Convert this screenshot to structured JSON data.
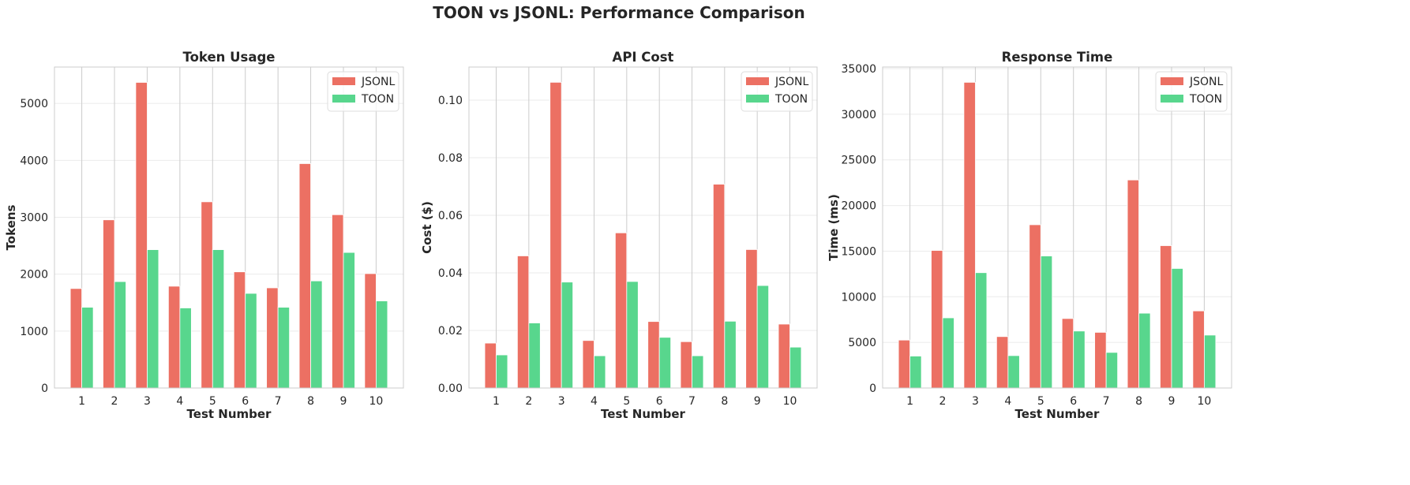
{
  "suptitle": "TOON vs JSONL: Performance Comparison",
  "colors": {
    "JSONL": "#ec7063",
    "TOON": "#58d68d"
  },
  "chart_data": [
    {
      "type": "bar",
      "title": "Token Usage",
      "xlabel": "Test Number",
      "ylabel": "Tokens",
      "categories": [
        "1",
        "2",
        "3",
        "4",
        "5",
        "6",
        "7",
        "8",
        "9",
        "10"
      ],
      "yticks": [
        "0",
        "1000",
        "2000",
        "3000",
        "4000",
        "5000"
      ],
      "ylim": [
        0,
        5640
      ],
      "grid": true,
      "legend": "top-right",
      "series": [
        {
          "name": "JSONL",
          "values": [
            1748,
            2955,
            5370,
            1789,
            3272,
            2041,
            1760,
            3943,
            3045,
            2010
          ]
        },
        {
          "name": "TOON",
          "values": [
            1419,
            1870,
            2431,
            1407,
            2431,
            1663,
            1419,
            1882,
            2382,
            1530
          ]
        }
      ]
    },
    {
      "type": "bar",
      "title": "API Cost",
      "xlabel": "Test Number",
      "ylabel": "Cost ($)",
      "categories": [
        "1",
        "2",
        "3",
        "4",
        "5",
        "6",
        "7",
        "8",
        "9",
        "10"
      ],
      "yticks": [
        "0.00",
        "0.02",
        "0.04",
        "0.06",
        "0.08",
        "0.10"
      ],
      "ylim": [
        0,
        0.1115
      ],
      "grid": true,
      "legend": "top-right",
      "series": [
        {
          "name": "JSONL",
          "values": [
            0.0156,
            0.0459,
            0.1062,
            0.0165,
            0.0539,
            0.0231,
            0.0161,
            0.0708,
            0.0481,
            0.0222
          ]
        },
        {
          "name": "TOON",
          "values": [
            0.0115,
            0.0226,
            0.0368,
            0.0112,
            0.037,
            0.0176,
            0.0112,
            0.0232,
            0.0356,
            0.0142
          ]
        }
      ]
    },
    {
      "type": "bar",
      "title": "Response Time",
      "xlabel": "Test Number",
      "ylabel": "Time (ms)",
      "categories": [
        "1",
        "2",
        "3",
        "4",
        "5",
        "6",
        "7",
        "8",
        "9",
        "10"
      ],
      "yticks": [
        "0",
        "5000",
        "10000",
        "15000",
        "20000",
        "25000",
        "30000",
        "35000"
      ],
      "ylim": [
        0,
        35175
      ],
      "grid": true,
      "legend": "top-right",
      "series": [
        {
          "name": "JSONL",
          "values": [
            5254,
            15076,
            33500,
            5635,
            17893,
            7614,
            6100,
            22800,
            15600,
            8450
          ]
        },
        {
          "name": "TOON",
          "values": [
            3500,
            7690,
            12640,
            3550,
            14467,
            6244,
            3900,
            8200,
            13100,
            5800
          ]
        }
      ]
    }
  ]
}
